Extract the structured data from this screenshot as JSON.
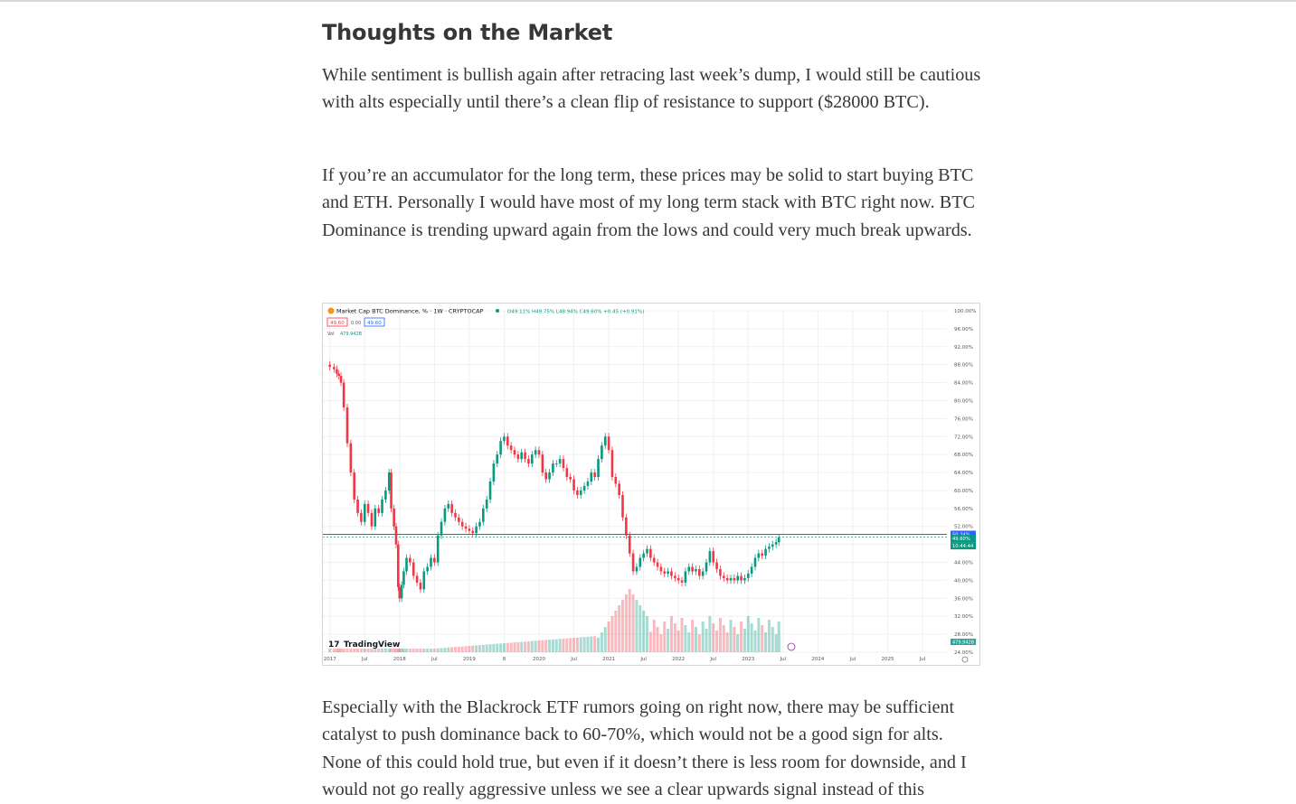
{
  "article": {
    "heading": "Thoughts on the Market",
    "paragraph_1": "While sentiment is bullish again after retracing last week’s dump, I would still be cautious with alts especially until there’s a clean flip of resistance to support ($28000 BTC).",
    "paragraph_2": "If you’re an accumulator for the long term, these prices may be solid to start buying BTC and ETH. Personally I would have most of my long term stack with BTC right now. BTC Dominance is trending upward again from the lows and could very much break upwards.",
    "paragraph_3": "Especially with the Blackrock ETF rumors going on right now, there may be sufficient catalyst to push dominance back to 60-70%, which would not be a good sign for alts. None of this could hold true, but even if it doesn’t there is less room for downside, and I would not go really aggressive unless we see a clear upwards signal instead of this"
  },
  "chart_data": {
    "type": "candlestick",
    "title": "Market Cap BTC Dominance, % · 1W · CRYPTOCAP",
    "ohlc_text": "O49.11% H49.75% L48.94% C49.60% +0.45 (+0.91%)",
    "price_boxes": {
      "sell": "49.60",
      "spread": "0.00",
      "buy": "49.60"
    },
    "volume_label": "Vol",
    "volume_value": "479.942B",
    "watermark": "TradingView",
    "ylim": [
      24,
      100
    ],
    "y_tick_labels": [
      "100.00%",
      "96.00%",
      "92.00%",
      "88.00%",
      "84.00%",
      "80.00%",
      "76.00%",
      "72.00%",
      "68.00%",
      "64.00%",
      "60.00%",
      "56.00%",
      "52.00%",
      "48.00%",
      "44.00%",
      "40.00%",
      "36.00%",
      "32.00%",
      "28.00%",
      "24.00%"
    ],
    "x_tick_labels": [
      "2017",
      "Jul",
      "2018",
      "Jul",
      "2019",
      "8",
      "2020",
      "Jul",
      "2021",
      "Jul",
      "2022",
      "Jul",
      "2023",
      "Jul",
      "2024",
      "Jul",
      "2025",
      "Jul"
    ],
    "x_tick_dates": [
      2017.0,
      2017.5,
      2018.0,
      2018.5,
      2019.0,
      2019.5,
      2020.0,
      2020.5,
      2021.0,
      2021.5,
      2022.0,
      2022.5,
      2023.0,
      2023.5,
      2024.0,
      2024.5,
      2025.0,
      2025.5
    ],
    "horizontal_line_level": 50.24,
    "price_tags": [
      {
        "text": "50.24%",
        "value": 50.24,
        "color": "#2962ff"
      },
      {
        "text": "49.60%",
        "value": 49.6,
        "color": "#089981"
      },
      {
        "text": "10:44:44",
        "value": 48.3,
        "color": "#089981"
      }
    ],
    "volume_tag": "479.942B",
    "close_series": {
      "dates": [
        2017.0,
        2017.06,
        2017.1,
        2017.13,
        2017.16,
        2017.2,
        2017.25,
        2017.3,
        2017.35,
        2017.4,
        2017.45,
        2017.5,
        2017.55,
        2017.6,
        2017.65,
        2017.7,
        2017.75,
        2017.8,
        2017.85,
        2017.88,
        2017.92,
        2017.95,
        2017.98,
        2018.0,
        2018.03,
        2018.06,
        2018.1,
        2018.15,
        2018.2,
        2018.25,
        2018.3,
        2018.35,
        2018.4,
        2018.45,
        2018.5,
        2018.55,
        2018.6,
        2018.65,
        2018.7,
        2018.75,
        2018.8,
        2018.85,
        2018.9,
        2018.95,
        2019.0,
        2019.05,
        2019.1,
        2019.15,
        2019.2,
        2019.25,
        2019.3,
        2019.35,
        2019.4,
        2019.45,
        2019.5,
        2019.55,
        2019.6,
        2019.65,
        2019.7,
        2019.75,
        2019.8,
        2019.85,
        2019.9,
        2019.95,
        2020.0,
        2020.05,
        2020.1,
        2020.15,
        2020.2,
        2020.25,
        2020.3,
        2020.35,
        2020.4,
        2020.45,
        2020.5,
        2020.55,
        2020.6,
        2020.65,
        2020.7,
        2020.75,
        2020.8,
        2020.85,
        2020.9,
        2020.95,
        2021.0,
        2021.05,
        2021.1,
        2021.15,
        2021.2,
        2021.25,
        2021.3,
        2021.35,
        2021.4,
        2021.45,
        2021.5,
        2021.55,
        2021.6,
        2021.65,
        2021.7,
        2021.75,
        2021.8,
        2021.85,
        2021.9,
        2021.95,
        2022.0,
        2022.05,
        2022.1,
        2022.15,
        2022.2,
        2022.25,
        2022.3,
        2022.35,
        2022.4,
        2022.45,
        2022.5,
        2022.55,
        2022.6,
        2022.65,
        2022.7,
        2022.75,
        2022.8,
        2022.85,
        2022.9,
        2022.95,
        2023.0,
        2023.05,
        2023.1,
        2023.15,
        2023.2,
        2023.25,
        2023.3,
        2023.35,
        2023.4,
        2023.44
      ],
      "values": [
        87.5,
        87.0,
        86.0,
        85.5,
        84.0,
        78.5,
        70.5,
        64.0,
        58.0,
        55.0,
        53.0,
        57.0,
        55.0,
        52.0,
        56.0,
        55.0,
        58.0,
        60.0,
        64.0,
        56.0,
        52.0,
        48.0,
        38.5,
        36.0,
        39.0,
        42.0,
        45.0,
        44.0,
        41.0,
        39.5,
        38.0,
        42.0,
        43.0,
        45.0,
        44.0,
        50.0,
        53.0,
        56.0,
        57.0,
        55.0,
        54.0,
        53.0,
        52.0,
        51.5,
        51.0,
        50.5,
        52.0,
        53.0,
        56.0,
        58.0,
        62.0,
        66.0,
        68.0,
        71.0,
        72.0,
        70.0,
        69.0,
        68.0,
        67.0,
        68.5,
        67.0,
        66.0,
        68.0,
        69.0,
        68.0,
        64.0,
        62.5,
        64.0,
        66.0,
        66.0,
        67.0,
        65.0,
        63.0,
        62.5,
        60.0,
        59.0,
        60.0,
        61.0,
        62.0,
        64.0,
        63.0,
        67.0,
        70.0,
        72.0,
        69.0,
        63.0,
        61.5,
        59.0,
        54.0,
        50.0,
        46.0,
        42.0,
        43.0,
        45.0,
        46.0,
        47.0,
        45.0,
        44.0,
        43.0,
        42.0,
        41.5,
        42.0,
        41.0,
        40.5,
        40.0,
        39.5,
        42.0,
        43.0,
        42.0,
        42.5,
        41.0,
        42.0,
        44.0,
        46.5,
        44.0,
        42.5,
        41.0,
        40.5,
        40.0,
        40.5,
        40.0,
        41.0,
        40.0,
        40.5,
        41.5,
        43.0,
        45.0,
        46.0,
        45.5,
        47.0,
        47.5,
        48.0,
        48.5,
        49.6
      ]
    },
    "volume_note": "Volume histogram bars shown in translucent green/red near bottom; relative heights only, peak around mid-2021."
  }
}
